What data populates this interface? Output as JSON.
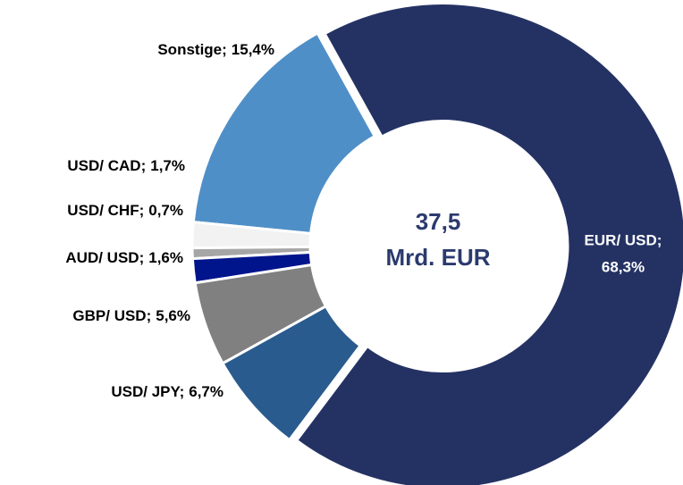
{
  "chart_data": {
    "type": "donut",
    "categories": [
      "EUR/ USD;",
      "USD/ JPY;",
      "GBP/ USD;",
      "AUD/ USD;",
      "USD/ CHF;",
      "USD/ CAD;",
      "Sonstige;"
    ],
    "values": [
      68.3,
      6.7,
      5.6,
      1.6,
      0.7,
      1.7,
      15.4
    ],
    "value_labels": [
      "68,3%",
      "6,7%",
      "5,6%",
      "1,6%",
      "0,7%",
      "1,7%",
      "15,4%"
    ],
    "colors": [
      "#243263",
      "#2a5b8e",
      "#808080",
      "#00148c",
      "#a6a6a6",
      "#f2f2f2",
      "#4f8fc7"
    ],
    "center_label": "37,5",
    "center_unit": "Mrd. EUR"
  }
}
